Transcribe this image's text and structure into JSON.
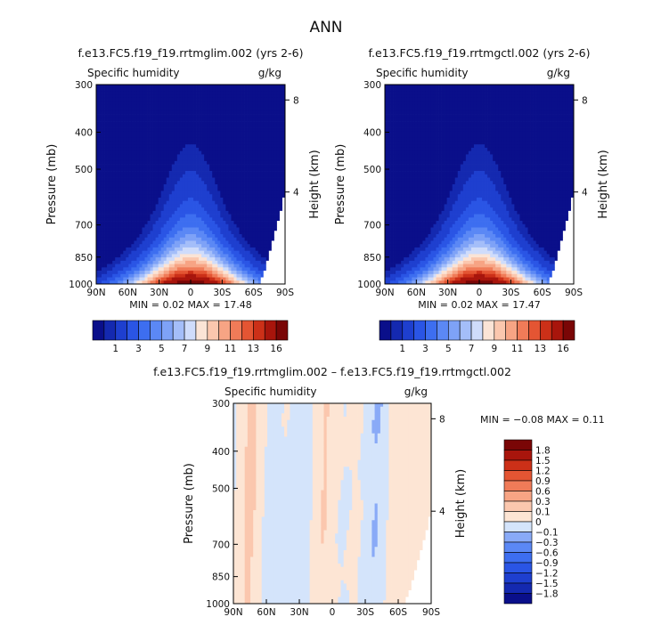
{
  "page": {
    "title": "ANN"
  },
  "chart_data": [
    {
      "type": "contour",
      "title": "f.e13.FC5.f19_f19.rrtmglim.002 (yrs 2-6)",
      "subtitle_left": "Specific humidity",
      "subtitle_right": "g/kg",
      "xlabel": "",
      "ylabel": "Pressure (mb)",
      "ylabel_right": "Height (km)",
      "x_tick_labels": [
        "90N",
        "60N",
        "30N",
        "0",
        "30S",
        "60S",
        "90S"
      ],
      "x_ticks": [
        90,
        60,
        30,
        0,
        -30,
        -60,
        -90
      ],
      "y_tick_labels": [
        "300",
        "400",
        "500",
        "700",
        "850",
        "1000"
      ],
      "y_ticks": [
        300,
        400,
        500,
        700,
        850,
        1000
      ],
      "y_scale": "log",
      "ylim": [
        300,
        1000
      ],
      "xlim": [
        90,
        -90
      ],
      "y_right_tick_labels": [
        "8",
        "4"
      ],
      "y_right_ticks": [
        8,
        4
      ],
      "min_text": "MIN =    0.02   MAX =   17.48",
      "min": 0.02,
      "max": 17.48,
      "colorbar": {
        "levels": [
          0.5,
          1,
          2,
          3,
          4,
          5,
          6,
          7,
          8,
          9,
          10,
          11,
          12,
          13,
          14,
          16
        ],
        "tick_labels": [
          "1",
          "3",
          "5",
          "7",
          "9",
          "11",
          "13",
          "16"
        ],
        "colors": [
          "#0a0f8a",
          "#1429b0",
          "#1e3fcf",
          "#2a55e5",
          "#3d6ef0",
          "#5b88f5",
          "#7ea2f7",
          "#a4bef9",
          "#cfdcfb",
          "#fbe4d6",
          "#fbc7ae",
          "#f7a484",
          "#f07b58",
          "#e45533",
          "#cc3018",
          "#a8150c",
          "#7a0606"
        ]
      }
    },
    {
      "type": "contour",
      "title": "f.e13.FC5.f19_f19.rrtmgctl.002 (yrs 2-6)",
      "subtitle_left": "Specific humidity",
      "subtitle_right": "g/kg",
      "xlabel": "",
      "ylabel": "Pressure (mb)",
      "ylabel_right": "Height (km)",
      "x_tick_labels": [
        "90N",
        "60N",
        "30N",
        "0",
        "30S",
        "60S",
        "90S"
      ],
      "x_ticks": [
        90,
        60,
        30,
        0,
        -30,
        -60,
        -90
      ],
      "y_tick_labels": [
        "300",
        "400",
        "500",
        "700",
        "850",
        "1000"
      ],
      "y_ticks": [
        300,
        400,
        500,
        700,
        850,
        1000
      ],
      "y_scale": "log",
      "ylim": [
        300,
        1000
      ],
      "xlim": [
        90,
        -90
      ],
      "y_right_tick_labels": [
        "8",
        "4"
      ],
      "y_right_ticks": [
        8,
        4
      ],
      "min_text": "MIN =    0.02   MAX =   17.47",
      "min": 0.02,
      "max": 17.47,
      "colorbar": {
        "levels": [
          0.5,
          1,
          2,
          3,
          4,
          5,
          6,
          7,
          8,
          9,
          10,
          11,
          12,
          13,
          14,
          16
        ],
        "tick_labels": [
          "1",
          "3",
          "5",
          "7",
          "9",
          "11",
          "13",
          "16"
        ],
        "colors": [
          "#0a0f8a",
          "#1429b0",
          "#1e3fcf",
          "#2a55e5",
          "#3d6ef0",
          "#5b88f5",
          "#7ea2f7",
          "#a4bef9",
          "#cfdcfb",
          "#fbe4d6",
          "#fbc7ae",
          "#f7a484",
          "#f07b58",
          "#e45533",
          "#cc3018",
          "#a8150c",
          "#7a0606"
        ]
      }
    },
    {
      "type": "contour",
      "title": "f.e13.FC5.f19_f19.rrtmglim.002 – f.e13.FC5.f19_f19.rrtmgctl.002",
      "subtitle_left": "Specific humidity",
      "subtitle_right": "g/kg",
      "xlabel": "",
      "ylabel": "Pressure (mb)",
      "ylabel_right": "Height (km)",
      "x_tick_labels": [
        "90N",
        "60N",
        "30N",
        "0",
        "30S",
        "60S",
        "90S"
      ],
      "x_ticks": [
        90,
        60,
        30,
        0,
        -30,
        -60,
        -90
      ],
      "y_tick_labels": [
        "300",
        "400",
        "500",
        "700",
        "850",
        "1000"
      ],
      "y_ticks": [
        300,
        400,
        500,
        700,
        850,
        1000
      ],
      "y_scale": "log",
      "ylim": [
        300,
        1000
      ],
      "xlim": [
        90,
        -90
      ],
      "y_right_tick_labels": [
        "8",
        "4"
      ],
      "y_right_ticks": [
        8,
        4
      ],
      "min_text": "MIN =  −0.08   MAX =    0.11",
      "min": -0.08,
      "max": 0.11,
      "colorbar": {
        "levels": [
          -1.8,
          -1.5,
          -1.2,
          -0.9,
          -0.6,
          -0.3,
          -0.1,
          0,
          0.1,
          0.3,
          0.6,
          0.9,
          1.2,
          1.5,
          1.8
        ],
        "tick_labels": [
          "−1.8",
          "−1.5",
          "−1.2",
          "−0.9",
          "−0.6",
          "−0.3",
          "−0.1",
          "0",
          "0.1",
          "0.3",
          "0.6",
          "0.9",
          "1.2",
          "1.5",
          "1.8"
        ],
        "colors": [
          "#0a0f8a",
          "#1429b0",
          "#1e3fcf",
          "#2a55e5",
          "#3d6ef0",
          "#5b88f5",
          "#89aaf7",
          "#d4e4fb",
          "#fde5d4",
          "#fbc7ae",
          "#f7a484",
          "#f07b58",
          "#e45533",
          "#cc3018",
          "#a8150c",
          "#7a0606"
        ]
      }
    }
  ]
}
